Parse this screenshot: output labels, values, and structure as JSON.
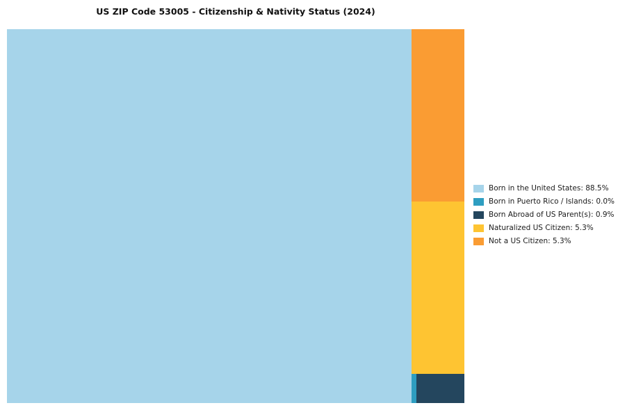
{
  "page": {
    "background": "#ffffff"
  },
  "chart_data": {
    "type": "treemap",
    "title": "US ZIP Code 53005 - Citizenship & Nativity Status (2024)",
    "legend_position": "right",
    "grid": false,
    "slices": [
      {
        "label": "Born in the United States",
        "value": 88.5,
        "display": "Born in the United States: 88.5%",
        "color": "#A6D4EA"
      },
      {
        "label": "Born in Puerto Rico / Islands",
        "value": 0.0,
        "display": "Born in Puerto Rico / Islands: 0.0%",
        "color": "#2E9EC1"
      },
      {
        "label": "Born Abroad of US Parent(s)",
        "value": 0.9,
        "display": "Born Abroad of US Parent(s): 0.9%",
        "color": "#24465E"
      },
      {
        "label": "Naturalized US Citizen",
        "value": 5.3,
        "display": "Naturalized US Citizen: 5.3%",
        "color": "#FEC432"
      },
      {
        "label": "Not a US Citizen",
        "value": 5.3,
        "display": "Not a US Citizen: 5.3%",
        "color": "#FA9C33"
      }
    ]
  }
}
